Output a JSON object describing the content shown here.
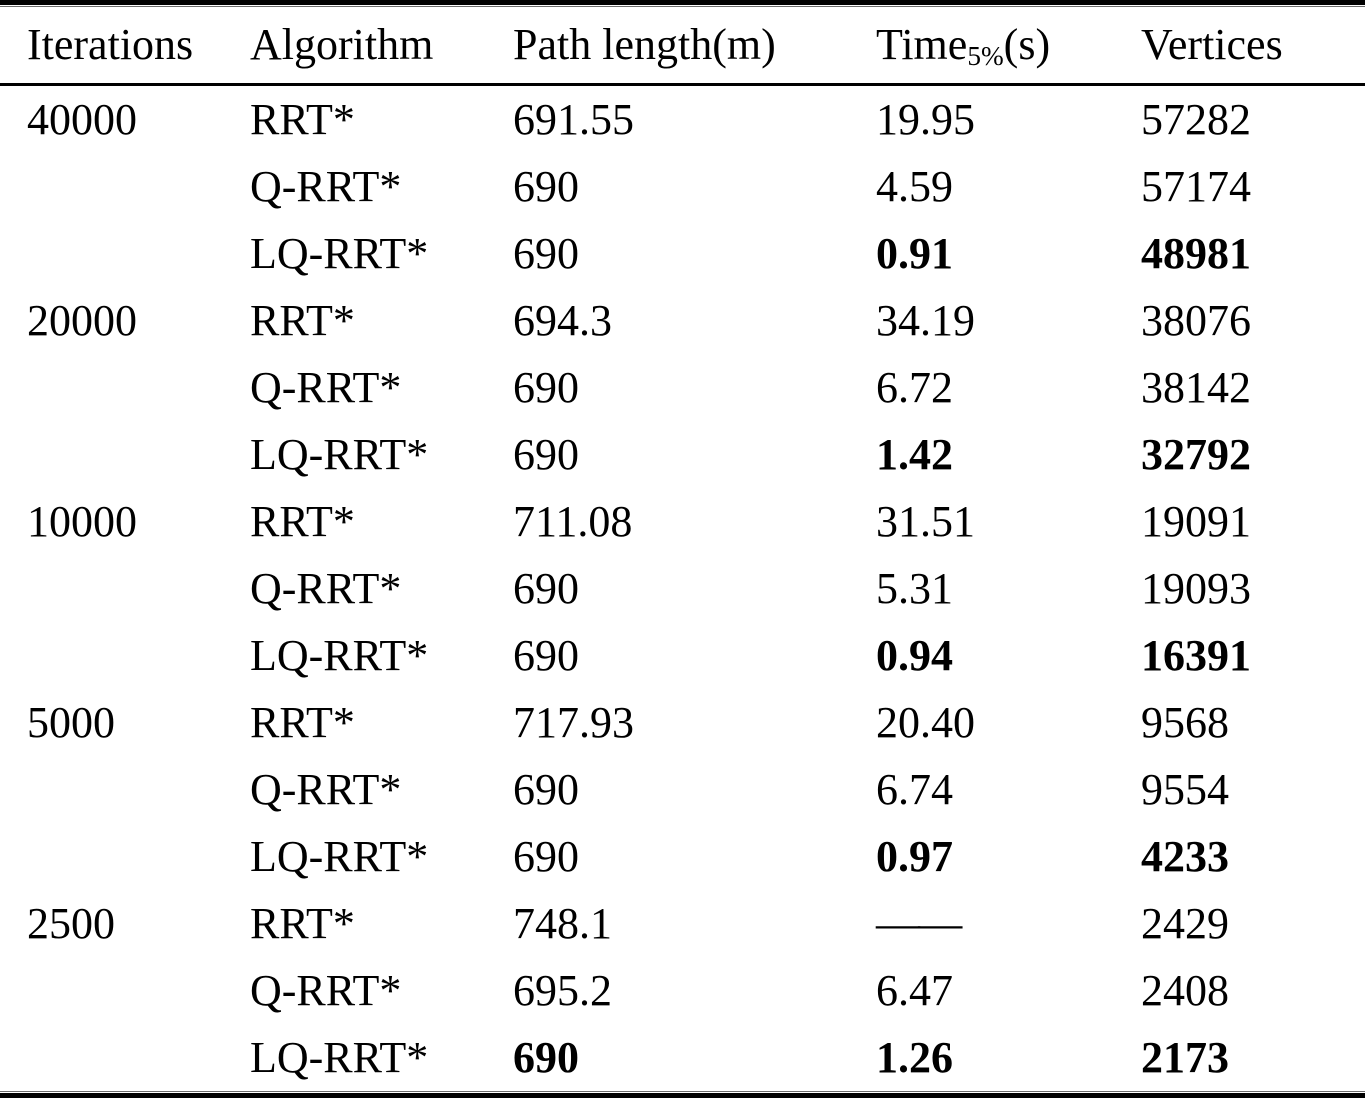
{
  "table": {
    "header": {
      "iterations": "Iterations",
      "algorithm": "Algorithm",
      "path_length": "Path length(m)",
      "time_base": "Time",
      "time_subscript": "5%",
      "time_unit": "(s)",
      "vertices": "Vertices"
    },
    "rows": [
      {
        "iterations": "40000",
        "algorithm": "RRT*",
        "path": "691.55",
        "time": "19.95",
        "vertices": "57282",
        "bold": []
      },
      {
        "iterations": "",
        "algorithm": "Q-RRT*",
        "path": "690",
        "time": "4.59",
        "vertices": "57174",
        "bold": []
      },
      {
        "iterations": "",
        "algorithm": "LQ-RRT*",
        "path": "690",
        "time": "0.91",
        "vertices": "48981",
        "bold": [
          "time",
          "vertices"
        ]
      },
      {
        "iterations": "20000",
        "algorithm": "RRT*",
        "path": "694.3",
        "time": "34.19",
        "vertices": "38076",
        "bold": []
      },
      {
        "iterations": "",
        "algorithm": "Q-RRT*",
        "path": "690",
        "time": "6.72",
        "vertices": "38142",
        "bold": []
      },
      {
        "iterations": "",
        "algorithm": "LQ-RRT*",
        "path": "690",
        "time": "1.42",
        "vertices": "32792",
        "bold": [
          "time",
          "vertices"
        ]
      },
      {
        "iterations": "10000",
        "algorithm": "RRT*",
        "path": "711.08",
        "time": "31.51",
        "vertices": "19091",
        "bold": []
      },
      {
        "iterations": "",
        "algorithm": "Q-RRT*",
        "path": "690",
        "time": "5.31",
        "vertices": "19093",
        "bold": []
      },
      {
        "iterations": "",
        "algorithm": "LQ-RRT*",
        "path": "690",
        "time": "0.94",
        "vertices": "16391",
        "bold": [
          "time",
          "vertices"
        ]
      },
      {
        "iterations": "5000",
        "algorithm": "RRT*",
        "path": "717.93",
        "time": "20.40",
        "vertices": "9568",
        "bold": []
      },
      {
        "iterations": "",
        "algorithm": "Q-RRT*",
        "path": "690",
        "time": "6.74",
        "vertices": "9554",
        "bold": []
      },
      {
        "iterations": "",
        "algorithm": "LQ-RRT*",
        "path": "690",
        "time": "0.97",
        "vertices": "4233",
        "bold": [
          "time",
          "vertices"
        ]
      },
      {
        "iterations": "2500",
        "algorithm": "RRT*",
        "path": "748.1",
        "time": "——",
        "vertices": "2429",
        "bold": [],
        "time_is_dash": true
      },
      {
        "iterations": "",
        "algorithm": "Q-RRT*",
        "path": "695.2",
        "time": "6.47",
        "vertices": "2408",
        "bold": []
      },
      {
        "iterations": "",
        "algorithm": "LQ-RRT*",
        "path": "690",
        "time": "1.26",
        "vertices": "2173",
        "bold": [
          "path",
          "time",
          "vertices"
        ]
      }
    ]
  }
}
